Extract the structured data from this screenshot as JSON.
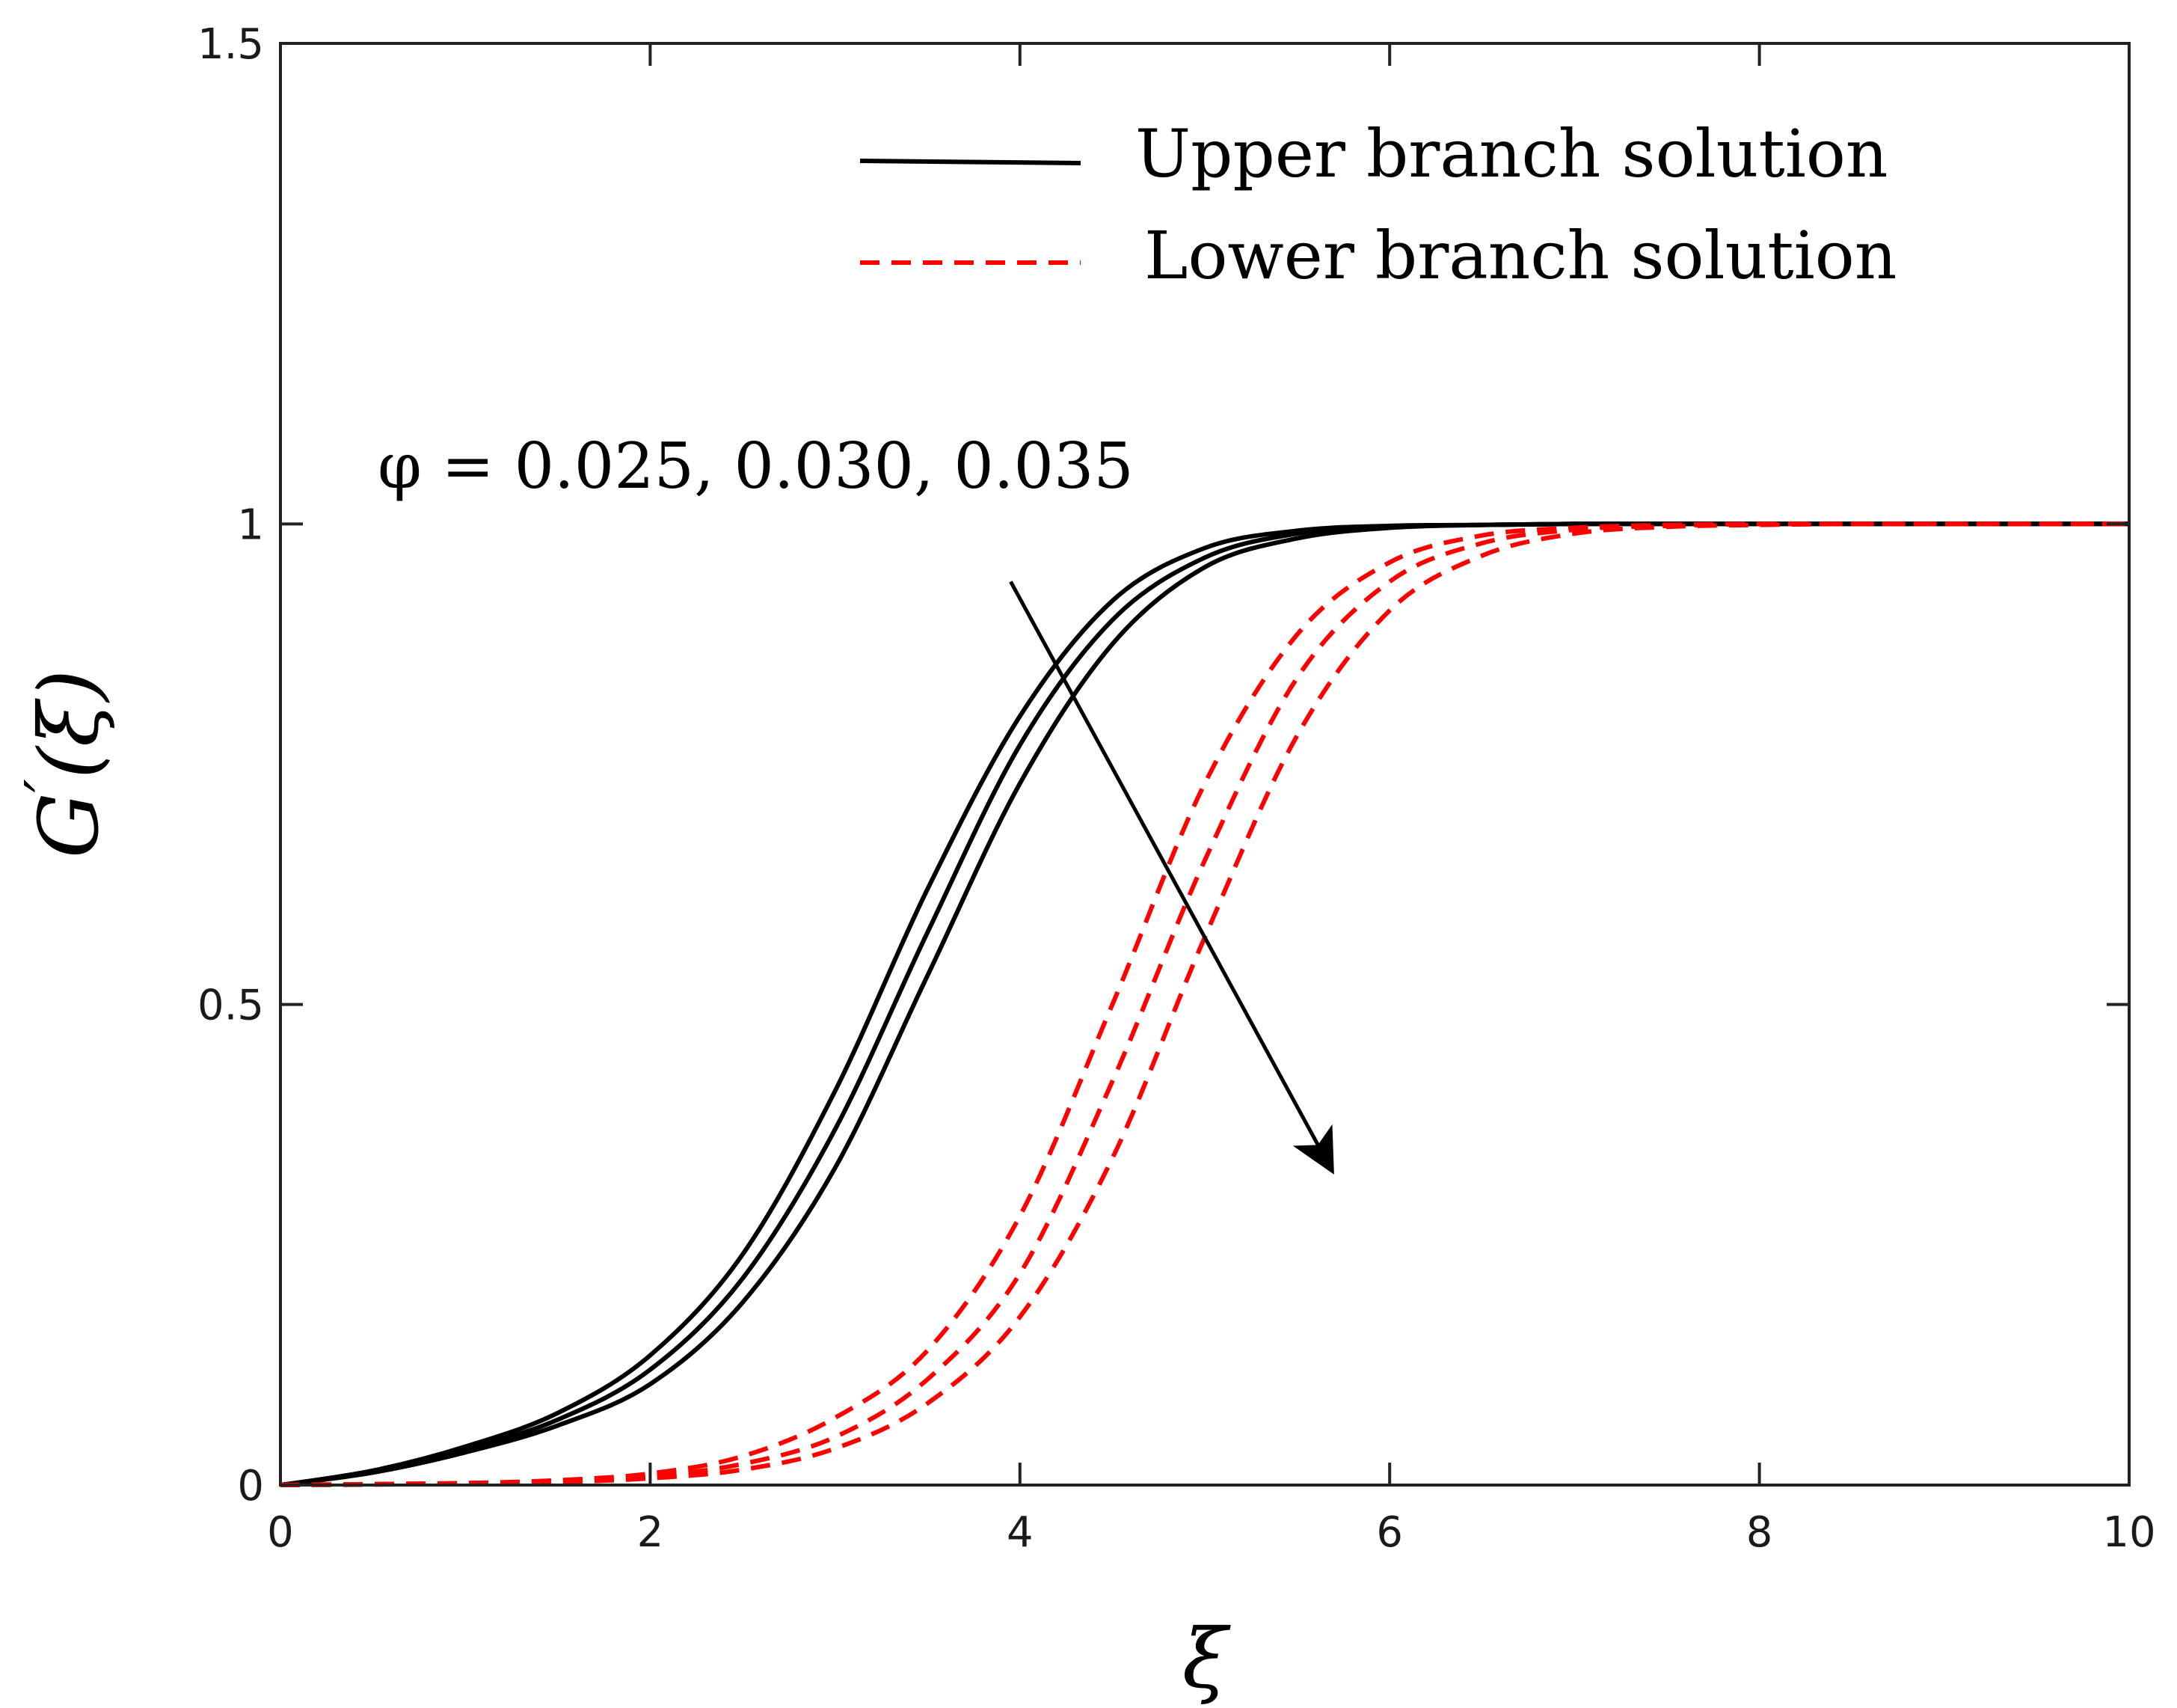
{
  "chart_data": {
    "type": "line",
    "xlabel": "ξ",
    "ylabel_base": "G",
    "ylabel_prime": "′",
    "ylabel_arg": "(ξ)",
    "xlim": [
      0,
      10
    ],
    "ylim": [
      0,
      1.5
    ],
    "xticks": [
      0,
      2,
      4,
      6,
      8,
      10
    ],
    "yticks": [
      0,
      0.5,
      1,
      1.5
    ],
    "ytick_labels": [
      "0",
      "0.5",
      "1",
      "1.5"
    ],
    "grid": false,
    "legend": {
      "placement": "top-right",
      "entries": [
        {
          "label": "Upper branch solution",
          "color": "#000000",
          "style": "solid"
        },
        {
          "label": "Lower branch solution",
          "color": "#ff0000",
          "style": "dashed"
        }
      ]
    },
    "annotation": {
      "text": "φ = 0.025, 0.030, 0.035",
      "arrow_from": [
        3.95,
        0.94
      ],
      "arrow_to": [
        5.68,
        0.33
      ]
    },
    "x": [
      0,
      0.5,
      1,
      1.5,
      2,
      2.5,
      3,
      3.5,
      4,
      4.5,
      5,
      5.5,
      6,
      6.5,
      7,
      7.5,
      8,
      8.5,
      9,
      9.5,
      10
    ],
    "series": [
      {
        "group": "upper",
        "phi": "0.025",
        "color": "#000000",
        "dash": "solid",
        "values": [
          0,
          0.015,
          0.04,
          0.075,
          0.135,
          0.24,
          0.41,
          0.62,
          0.8,
          0.92,
          0.975,
          0.993,
          0.998,
          0.999,
          1,
          1,
          1,
          1,
          1,
          1,
          1
        ]
      },
      {
        "group": "upper",
        "phi": "0.030",
        "color": "#000000",
        "dash": "solid",
        "values": [
          0,
          0.014,
          0.037,
          0.068,
          0.12,
          0.215,
          0.37,
          0.575,
          0.77,
          0.9,
          0.965,
          0.99,
          0.997,
          0.999,
          1,
          1,
          1,
          1,
          1,
          1,
          1
        ]
      },
      {
        "group": "upper",
        "phi": "0.035",
        "color": "#000000",
        "dash": "solid",
        "values": [
          0,
          0.013,
          0.034,
          0.062,
          0.105,
          0.19,
          0.33,
          0.53,
          0.73,
          0.875,
          0.955,
          0.985,
          0.996,
          0.999,
          1,
          1,
          1,
          1,
          1,
          1,
          1
        ]
      },
      {
        "group": "lower",
        "phi": "0.025",
        "color": "#ff0000",
        "dash": "dashed",
        "values": [
          0,
          0.001,
          0.002,
          0.005,
          0.012,
          0.03,
          0.07,
          0.14,
          0.28,
          0.5,
          0.73,
          0.885,
          0.96,
          0.988,
          0.996,
          0.999,
          1,
          1,
          1,
          1,
          1
        ]
      },
      {
        "group": "lower",
        "phi": "0.030",
        "color": "#ff0000",
        "dash": "dashed",
        "values": [
          0,
          0.001,
          0.002,
          0.004,
          0.009,
          0.022,
          0.05,
          0.11,
          0.22,
          0.42,
          0.65,
          0.84,
          0.94,
          0.98,
          0.994,
          0.998,
          1,
          1,
          1,
          1,
          1
        ]
      },
      {
        "group": "lower",
        "phi": "0.035",
        "color": "#ff0000",
        "dash": "dashed",
        "values": [
          0,
          0.0005,
          0.0015,
          0.003,
          0.007,
          0.016,
          0.038,
          0.085,
          0.175,
          0.34,
          0.57,
          0.78,
          0.91,
          0.967,
          0.99,
          0.997,
          0.999,
          1,
          1,
          1,
          1
        ]
      }
    ]
  }
}
